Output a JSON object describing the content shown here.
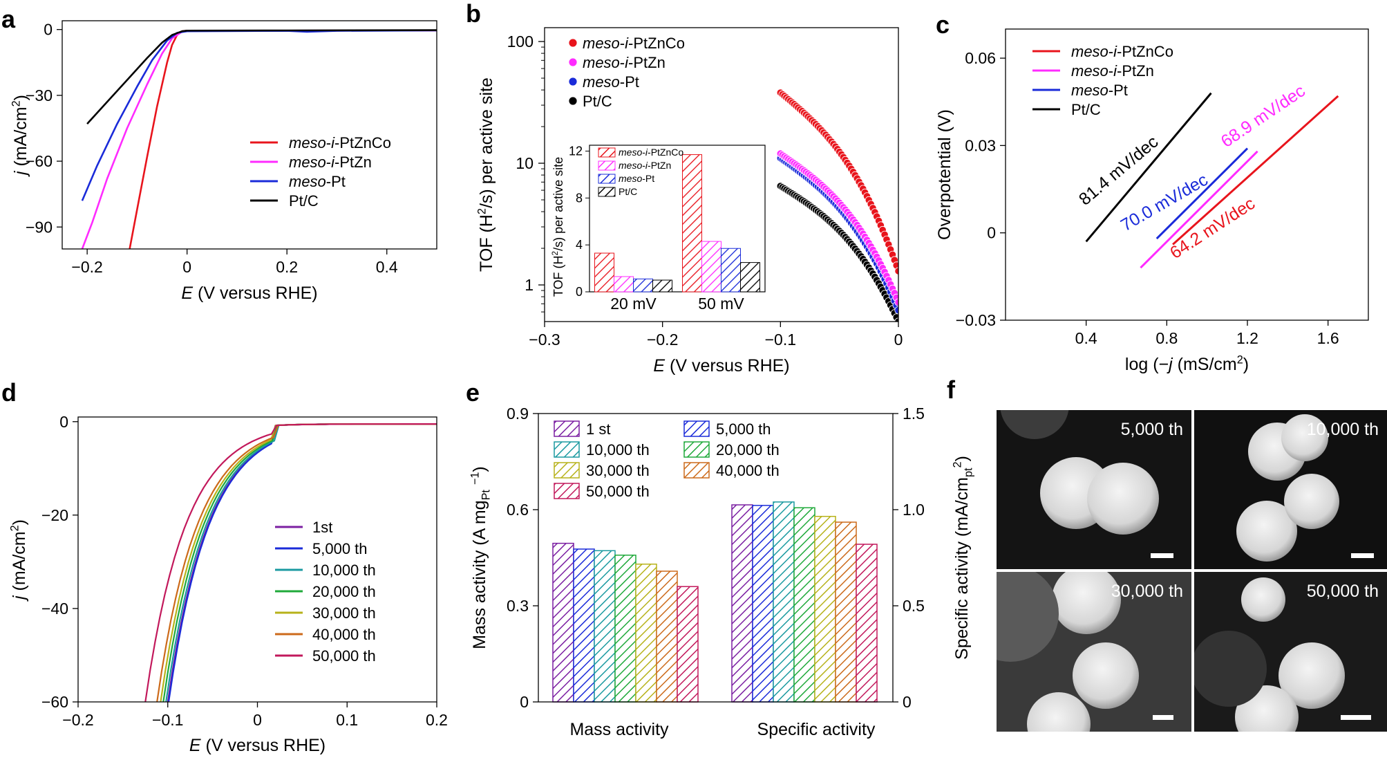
{
  "colors": {
    "PtZnCo": "#e8141c",
    "PtZn": "#ff2bff",
    "Pt": "#1a2bd9",
    "PtC": "#000000",
    "c1st": "#7b1fa2",
    "c5000": "#1a2bd9",
    "c10000": "#1a9aa0",
    "c20000": "#1fa93a",
    "c30000": "#b7b21a",
    "c40000": "#cc6a1a",
    "c50000": "#c2185b"
  },
  "chart_data": [
    {
      "panel": "a",
      "type": "line",
      "xlabel_italic": "E",
      "xlabel_rest": " (V versus RHE)",
      "ylabel_italic": "j",
      "ylabel_rest": " (mA/cm",
      "ylabel_sup": "2",
      "ylabel_end": ")",
      "xlim": [
        -0.25,
        0.5
      ],
      "ylim": [
        -100,
        4
      ],
      "xticks": [
        -0.2,
        0,
        0.2,
        0.4
      ],
      "xtick_labels": [
        "−0.2",
        "0",
        "0.2",
        "0.4"
      ],
      "yticks": [
        0,
        -30,
        -60,
        -90
      ],
      "ytick_labels": [
        "0",
        "−30",
        "−60",
        "−90"
      ],
      "series": [
        {
          "name_i": "meso",
          "name_mid": "-",
          "name_i2": "i",
          "name_rest": "-PtZnCo",
          "color_key": "PtZnCo",
          "x": [
            -0.115,
            -0.1,
            -0.08,
            -0.06,
            -0.04,
            -0.03,
            -0.02,
            -0.01,
            0,
            0.05,
            0.2,
            0.5
          ],
          "y": [
            -100,
            -82,
            -58,
            -35,
            -15,
            -7,
            -2.5,
            -0.8,
            -0.5,
            -0.5,
            -0.5,
            -0.4
          ]
        },
        {
          "name_i": "meso",
          "name_mid": "-",
          "name_i2": "i",
          "name_rest": "-PtZn",
          "color_key": "PtZn",
          "x": [
            -0.21,
            -0.19,
            -0.16,
            -0.12,
            -0.08,
            -0.05,
            -0.03,
            -0.01,
            0,
            0.2,
            0.5
          ],
          "y": [
            -100,
            -88,
            -68,
            -45,
            -25,
            -11,
            -4,
            -1,
            -0.6,
            -0.5,
            -0.4
          ]
        },
        {
          "name_i": "meso",
          "name_mid": "-",
          "name_i2": "",
          "name_rest": "Pt",
          "color_key": "Pt",
          "x": [
            -0.21,
            -0.18,
            -0.14,
            -0.1,
            -0.07,
            -0.04,
            -0.02,
            0,
            0.2,
            0.24,
            0.3,
            0.5
          ],
          "y": [
            -78,
            -62,
            -43,
            -26,
            -14,
            -5,
            -1.5,
            -0.8,
            -0.6,
            -1,
            -0.6,
            -0.4
          ]
        },
        {
          "name_i": "",
          "name_mid": "",
          "name_i2": "",
          "name_rest": "Pt/C",
          "color_key": "PtC",
          "x": [
            -0.2,
            -0.16,
            -0.12,
            -0.08,
            -0.05,
            -0.03,
            -0.01,
            0,
            0.2,
            0.5
          ],
          "y": [
            -43,
            -33,
            -23,
            -13,
            -6,
            -2.5,
            -0.8,
            -0.5,
            -0.4,
            -0.3
          ]
        }
      ]
    },
    {
      "panel": "b",
      "type": "scatter",
      "xlabel_italic": "E",
      "xlabel_rest": " (V versus RHE)",
      "ylabel": "TOF (H",
      "ylabel_sup": "2",
      "ylabel_end": "/s) per active site",
      "xlim": [
        -0.3,
        0
      ],
      "ylim_log": [
        0.5,
        130
      ],
      "xticks": [
        -0.3,
        -0.2,
        -0.1,
        0
      ],
      "xtick_labels": [
        "−0.3",
        "−0.2",
        "−0.1",
        "0"
      ],
      "yticks": [
        1,
        10,
        100
      ],
      "ytick_labels": [
        "1",
        "10",
        "100"
      ],
      "series": [
        {
          "name_i": "meso",
          "name_mid": "-",
          "name_i2": "i",
          "name_rest": "-PtZnCo",
          "color_key": "PtZnCo",
          "start": 38,
          "end": 1.3
        },
        {
          "name_i": "meso",
          "name_mid": "-",
          "name_i2": "i",
          "name_rest": "-PtZn",
          "color_key": "PtZn",
          "start": 12,
          "end": 0.72
        },
        {
          "name_i": "meso",
          "name_mid": "-",
          "name_i2": "",
          "name_rest": "Pt",
          "color_key": "Pt",
          "start": 11,
          "end": 0.62
        },
        {
          "name_i": "",
          "name_mid": "",
          "name_i2": "",
          "name_rest": "Pt/C",
          "color_key": "PtC",
          "start": 6.5,
          "end": 0.5
        }
      ],
      "inset": {
        "type": "bar",
        "ylabel": "TOF (H",
        "ylabel_sup": "2",
        "ylabel_end": "/s) per active site",
        "ylim": [
          0,
          12.5
        ],
        "yticks": [
          0,
          4,
          8,
          12
        ],
        "ytick_labels": [
          "0",
          "4",
          "8",
          "12"
        ],
        "categories": [
          "20 mV",
          "50 mV"
        ],
        "series": [
          {
            "name": "meso-i-PtZnCo",
            "color_key": "PtZnCo",
            "values": [
              3.3,
              11.7
            ]
          },
          {
            "name": "meso-i-PtZn",
            "color_key": "PtZn",
            "values": [
              1.3,
              4.3
            ]
          },
          {
            "name": "meso-Pt",
            "color_key": "Pt",
            "values": [
              1.1,
              3.7
            ]
          },
          {
            "name": "Pt/C",
            "color_key": "PtC",
            "values": [
              1.0,
              2.5
            ]
          }
        ]
      }
    },
    {
      "panel": "c",
      "type": "line",
      "xlabel": "log (−",
      "xlabel_italic": "j",
      "xlabel_rest": " (mS/cm",
      "xlabel_sup": "2",
      "xlabel_end": ")",
      "ylabel": "Overpotential (V)",
      "xlim": [
        0.0,
        1.8
      ],
      "ylim": [
        -0.03,
        0.07
      ],
      "xticks": [
        0.4,
        0.8,
        1.2,
        1.6
      ],
      "xtick_labels": [
        "0.4",
        "0.8",
        "1.2",
        "1.6"
      ],
      "yticks": [
        -0.03,
        0,
        0.03,
        0.06
      ],
      "ytick_labels": [
        "−0.03",
        "0",
        "0.03",
        "0.06"
      ],
      "series": [
        {
          "name_i": "meso",
          "name_mid": "-",
          "name_i2": "i",
          "name_rest": "-PtZnCo",
          "color_key": "PtZnCo",
          "x": [
            0.83,
            1.65
          ],
          "y": [
            -0.004,
            0.047
          ],
          "slope_label": "64.2 mV/dec"
        },
        {
          "name_i": "meso",
          "name_mid": "-",
          "name_i2": "i",
          "name_rest": "-PtZn",
          "color_key": "PtZn",
          "x": [
            0.67,
            1.25
          ],
          "y": [
            -0.012,
            0.028
          ],
          "slope_label": "68.9 mV/dec"
        },
        {
          "name_i": "meso",
          "name_mid": "-",
          "name_i2": "",
          "name_rest": "Pt",
          "color_key": "Pt",
          "x": [
            0.75,
            1.2
          ],
          "y": [
            -0.002,
            0.029
          ],
          "slope_label": "70.0 mV/dec"
        },
        {
          "name_i": "",
          "name_mid": "",
          "name_i2": "",
          "name_rest": "Pt/C",
          "color_key": "PtC",
          "x": [
            0.4,
            1.02
          ],
          "y": [
            -0.003,
            0.048
          ],
          "slope_label": "81.4 mV/dec"
        }
      ]
    },
    {
      "panel": "d",
      "type": "line",
      "xlabel_italic": "E",
      "xlabel_rest": " (V versus RHE)",
      "ylabel_italic": "j",
      "ylabel_rest": " (mA/cm",
      "ylabel_sup": "2",
      "ylabel_end": ")",
      "xlim": [
        -0.2,
        0.2
      ],
      "ylim": [
        -60,
        1
      ],
      "xticks": [
        -0.2,
        -0.1,
        0,
        0.1,
        0.2
      ],
      "xtick_labels": [
        "−0.2",
        "−0.1",
        "0",
        "0.1",
        "0.2"
      ],
      "yticks": [
        0,
        -20,
        -40,
        -60
      ],
      "ytick_labels": [
        "0",
        "−20",
        "−40",
        "−60"
      ],
      "series": [
        {
          "name": "1st",
          "color_key": "c1st",
          "x0": -0.1
        },
        {
          "name": "5,000 th",
          "color_key": "c5000",
          "x0": -0.099
        },
        {
          "name": "10,000 th",
          "color_key": "c10000",
          "x0": -0.102
        },
        {
          "name": "20,000 th",
          "color_key": "c20000",
          "x0": -0.105
        },
        {
          "name": "30,000 th",
          "color_key": "c30000",
          "x0": -0.108
        },
        {
          "name": "40,000 th",
          "color_key": "c40000",
          "x0": -0.112
        },
        {
          "name": "50,000 th",
          "color_key": "c50000",
          "x0": -0.125
        }
      ]
    },
    {
      "panel": "e",
      "type": "bar",
      "ylabel_left": "Mass activity (A mg",
      "ylabel_left_sub": "Pt",
      "ylabel_left_sup": "−1",
      "ylabel_left_end": ")",
      "ylabel_right": "Specific activity (mA/cm",
      "ylabel_right_sub": "pt",
      "ylabel_right_sup": "2",
      "ylabel_right_end": ")",
      "ylim_left": [
        0,
        0.9
      ],
      "ylim_right": [
        0,
        1.5
      ],
      "yticks_left": [
        0,
        0.3,
        0.6,
        0.9
      ],
      "ytick_labels_left": [
        "0",
        "0.3",
        "0.6",
        "0.9"
      ],
      "yticks_right": [
        0,
        0.5,
        1.0,
        1.5
      ],
      "ytick_labels_right": [
        "0",
        "0.5",
        "1.0",
        "1.5"
      ],
      "categories": [
        "Mass activity",
        "Specific activity"
      ],
      "series": [
        {
          "name": "1 st",
          "color_key": "c1st",
          "values": [
            0.495,
            1.025
          ]
        },
        {
          "name": "5,000 th",
          "color_key": "c5000",
          "values": [
            0.477,
            1.022
          ]
        },
        {
          "name": "10,000 th",
          "color_key": "c10000",
          "values": [
            0.472,
            1.04
          ]
        },
        {
          "name": "20,000 th",
          "color_key": "c20000",
          "values": [
            0.458,
            1.01
          ]
        },
        {
          "name": "30,000 th",
          "color_key": "c30000",
          "values": [
            0.43,
            0.965
          ]
        },
        {
          "name": "40,000 th",
          "color_key": "c40000",
          "values": [
            0.408,
            0.935
          ]
        },
        {
          "name": "50,000 th",
          "color_key": "c50000",
          "values": [
            0.36,
            0.82
          ]
        }
      ]
    }
  ],
  "panel_f": {
    "images": [
      {
        "label": "5,000 th"
      },
      {
        "label": "10,000 th"
      },
      {
        "label": "30,000 th"
      },
      {
        "label": "50,000 th"
      }
    ]
  },
  "panel_letters": [
    "a",
    "b",
    "c",
    "d",
    "e",
    "f"
  ]
}
